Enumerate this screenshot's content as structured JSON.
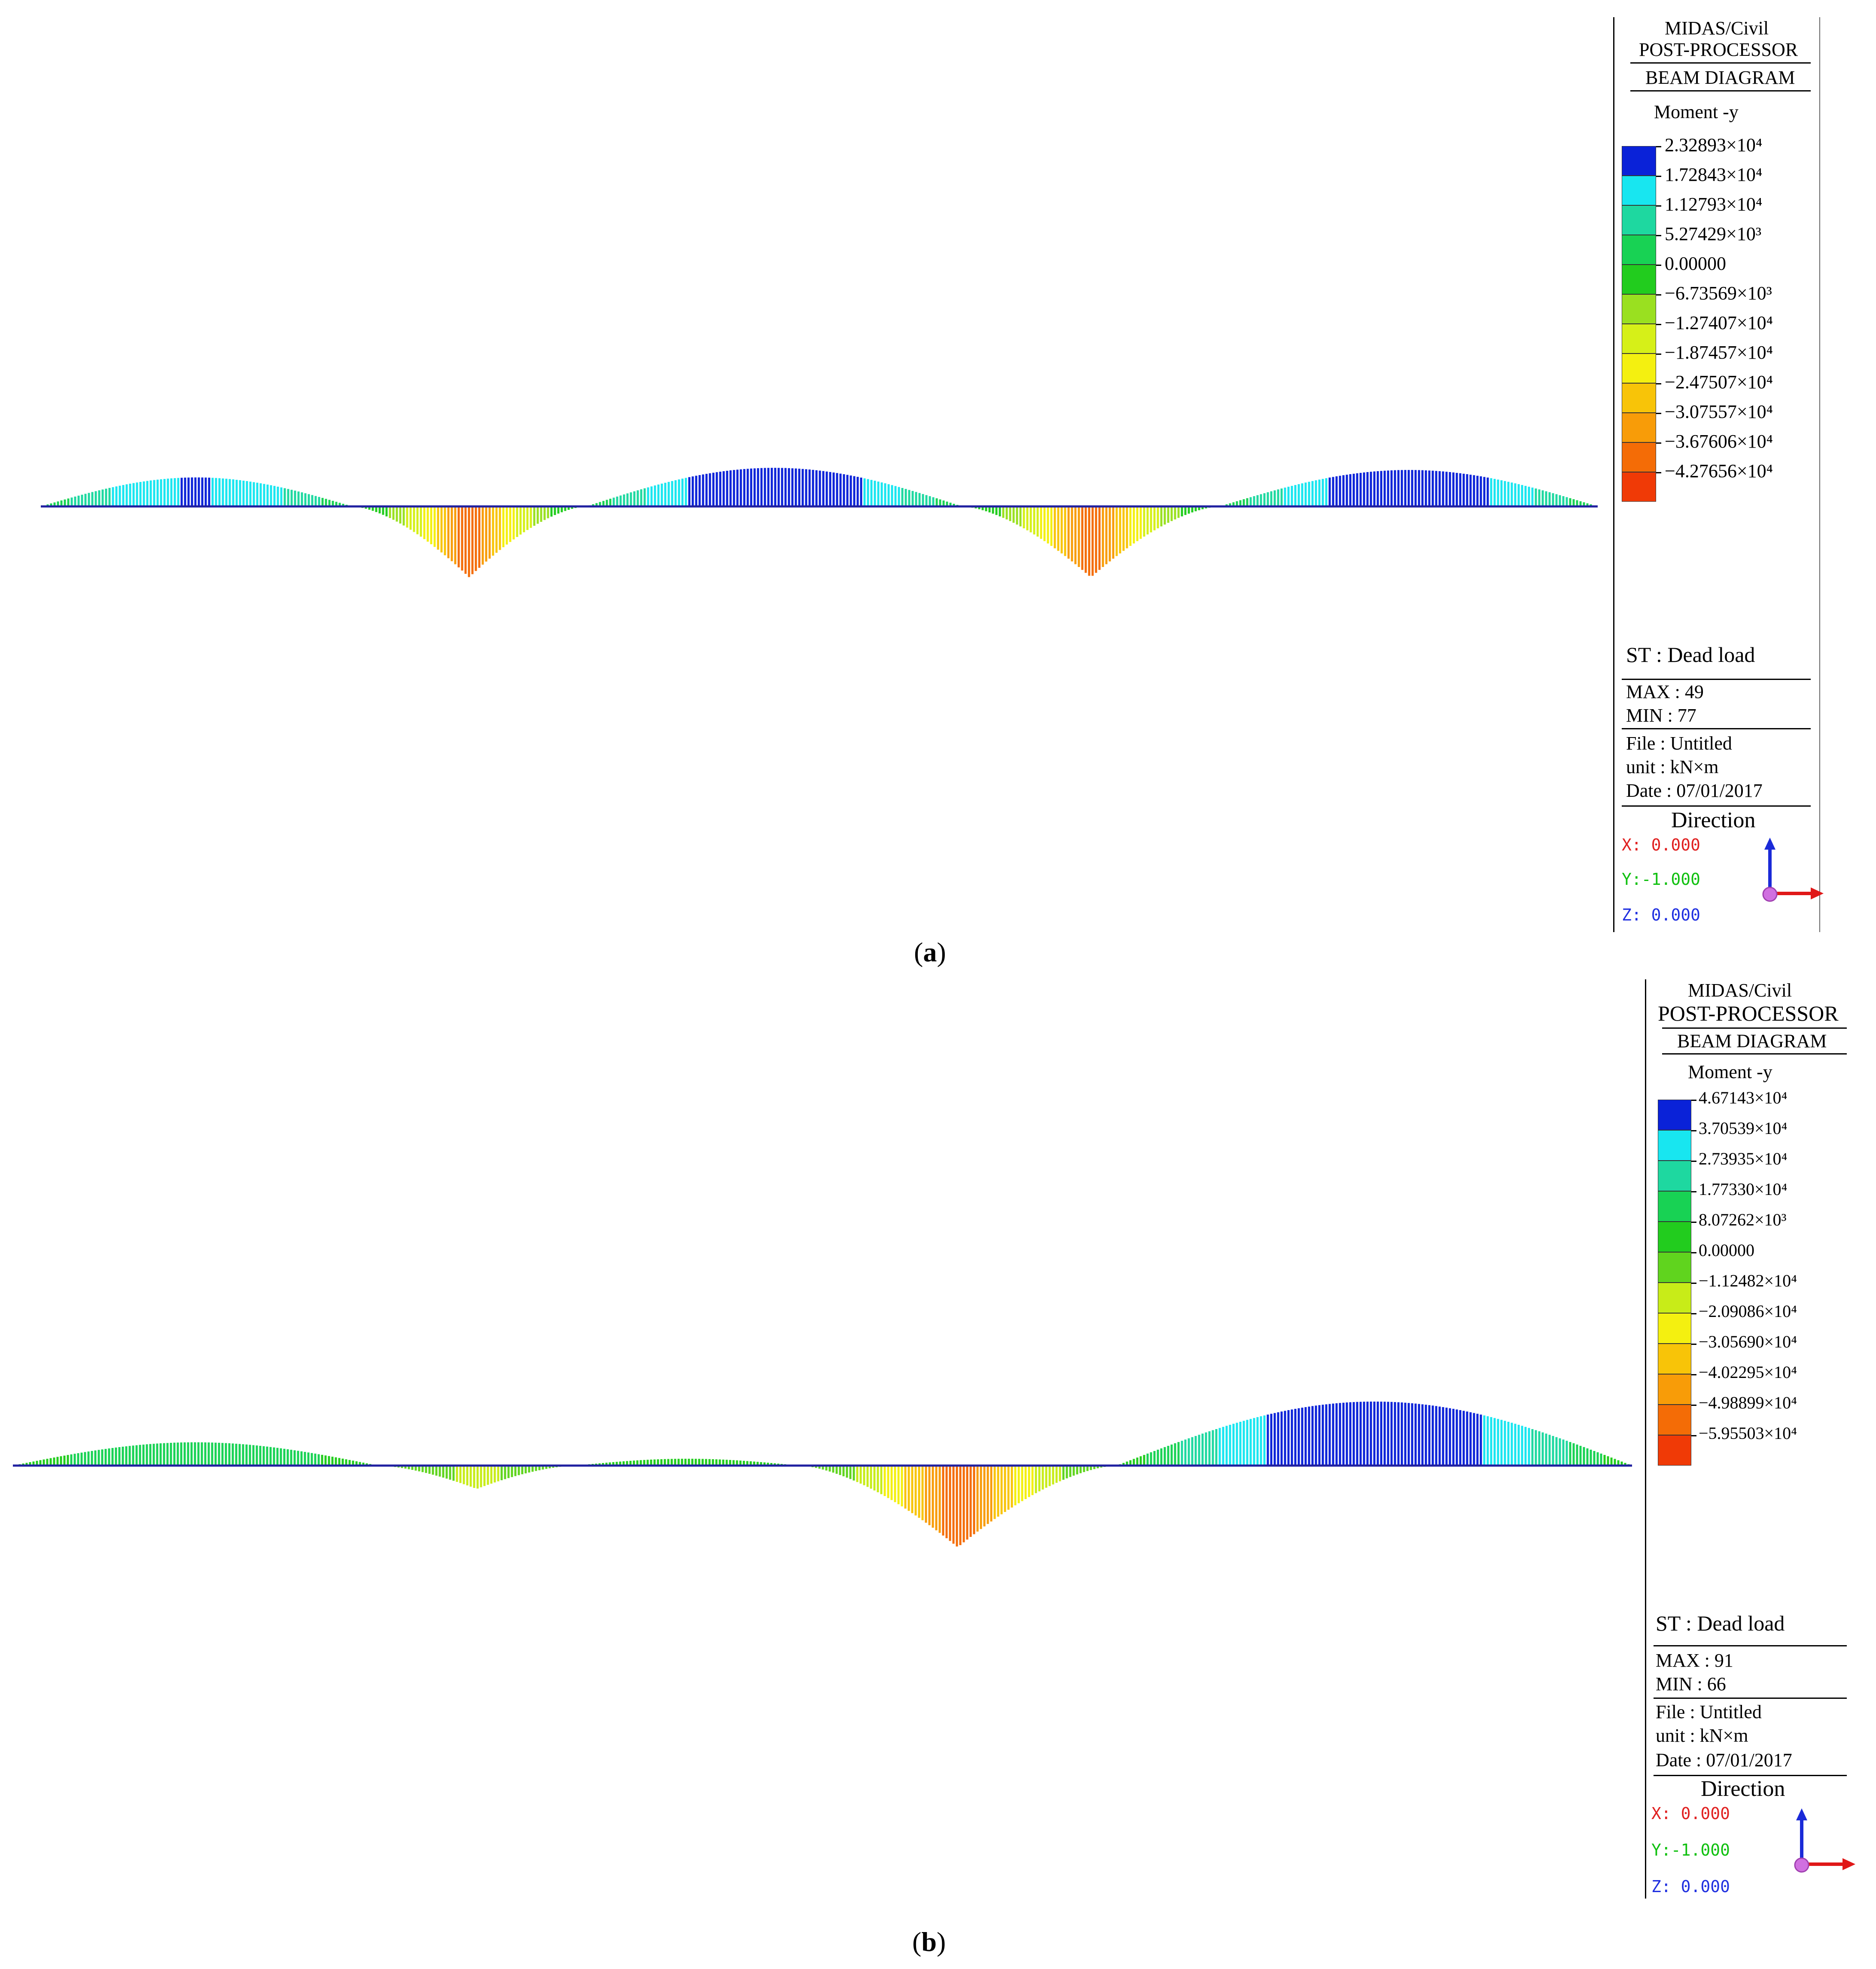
{
  "figures": [
    {
      "id": "a",
      "caption_label": "a",
      "header": {
        "program": "MIDAS/Civil",
        "module": "POST-PROCESSOR",
        "diagram": "BEAM DIAGRAM",
        "quantity": "Moment -y"
      },
      "scale_values": [
        "2.32893×10⁴",
        "1.72843×10⁴",
        "1.12793×10⁴",
        "5.27429×10³",
        "0.00000",
        "−6.73569×10³",
        "−1.27407×10⁴",
        "−1.87457×10⁴",
        "−2.47507×10⁴",
        "−3.07557×10⁴",
        "−3.67606×10⁴",
        "−4.27656×10⁴"
      ],
      "scale_colors": [
        "#0a22d8",
        "#18e6f0",
        "#1ed8a0",
        "#18d254",
        "#22cc1e",
        "#9ae020",
        "#d6f018",
        "#f4f010",
        "#f8c408",
        "#f89c08",
        "#f46c06",
        "#f03a06"
      ],
      "st": "ST : Dead load",
      "max_label": "MAX : 49",
      "min_label": "MIN : 77",
      "file": "File : Untitled",
      "unit": "unit : kN×m",
      "date": "Date : 07/01/2017",
      "direction_title": "Direction",
      "dir_x": "X: 0.000",
      "dir_y": "Y:-1.000",
      "dir_z": "Z: 0.000"
    },
    {
      "id": "b",
      "caption_label": "b",
      "header": {
        "program": "MIDAS/Civil",
        "module": "POST-PROCESSOR",
        "diagram": "BEAM DIAGRAM",
        "quantity": "Moment -y"
      },
      "scale_values": [
        "4.67143×10⁴",
        "3.70539×10⁴",
        "2.73935×10⁴",
        "1.77330×10⁴",
        "8.07262×10³",
        "0.00000",
        "−1.12482×10⁴",
        "−2.09086×10⁴",
        "−3.05690×10⁴",
        "−4.02295×10⁴",
        "−4.98899×10⁴",
        "−5.95503×10⁴"
      ],
      "scale_colors": [
        "#0a22d8",
        "#18e6f0",
        "#1ed8a0",
        "#18d254",
        "#22cc1e",
        "#60d41e",
        "#c8ec18",
        "#f4f010",
        "#f8c408",
        "#f89c08",
        "#f46c06",
        "#f03a06"
      ],
      "st": "ST : Dead load",
      "max_label": "MAX : 91",
      "min_label": "MIN : 66",
      "file": "File : Untitled",
      "unit": "unit : kN×m",
      "date": "Date : 07/01/2017",
      "direction_title": "Direction",
      "dir_x": "X: 0.000",
      "dir_y": "Y:-1.000",
      "dir_z": "Z: 0.000"
    }
  ]
}
